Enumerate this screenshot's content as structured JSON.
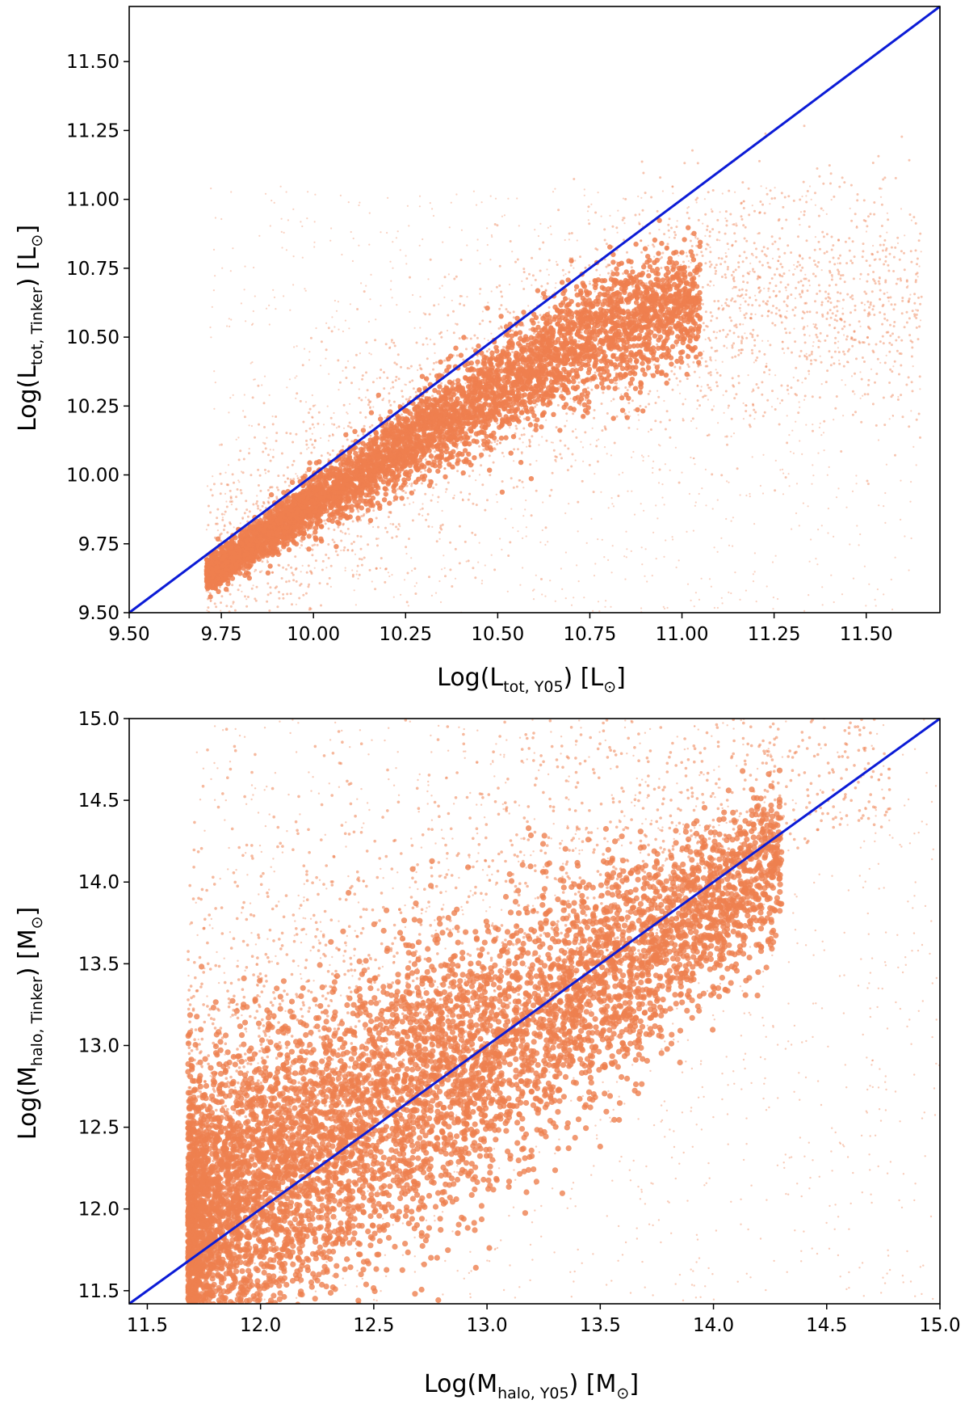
{
  "chart_data": [
    {
      "type": "scatter",
      "xlabel": {
        "base": "Log(L",
        "sub": "tot, Y05",
        "after": ") [L",
        "sun": "⊙",
        "close": "]"
      },
      "ylabel": {
        "base": "Log(L",
        "sub": "tot, Tinker",
        "after": ") [L",
        "sun": "⊙",
        "close": "]"
      },
      "xlim": [
        9.5,
        11.7
      ],
      "ylim": [
        9.5,
        11.7
      ],
      "xticks": [
        "9.50",
        "9.75",
        "10.00",
        "10.25",
        "10.50",
        "10.75",
        "11.00",
        "11.25",
        "11.50"
      ],
      "yticks": [
        "9.50",
        "9.75",
        "10.00",
        "10.25",
        "10.50",
        "10.75",
        "11.00",
        "11.25",
        "11.50"
      ],
      "grid": false,
      "point_color": "#ee7f4f",
      "line_color": "#0b1bd6",
      "reference_line": {
        "label": "",
        "x": [
          9.5,
          11.7
        ],
        "y": [
          9.5,
          11.7
        ]
      },
      "distribution": {
        "dense_ridge": {
          "x": [
            9.72,
            10.0,
            10.25,
            10.5,
            10.75,
            11.0
          ],
          "y": [
            9.64,
            9.9,
            10.11,
            10.31,
            10.5,
            10.62
          ],
          "scatter_sd": [
            0.03,
            0.05,
            0.07,
            0.09,
            0.11,
            0.1
          ]
        },
        "x_min": 9.71,
        "x_max": 11.65,
        "y_max": 11.05
      }
    },
    {
      "type": "scatter",
      "xlabel": {
        "base": "Log(M",
        "sub": "halo, Y05",
        "after": ") [M",
        "sun": "⊙",
        "close": "]"
      },
      "ylabel": {
        "base": "Log(M",
        "sub": "halo, Tinker",
        "after": ") [M",
        "sun": "⊙",
        "close": "]"
      },
      "xlim": [
        11.42,
        15.0
      ],
      "ylim": [
        11.42,
        15.0
      ],
      "xticks": [
        "11.5",
        "12.0",
        "12.5",
        "13.0",
        "13.5",
        "14.0",
        "14.5",
        "15.0"
      ],
      "yticks": [
        "11.5",
        "12.0",
        "12.5",
        "13.0",
        "13.5",
        "14.0",
        "14.5",
        "15.0"
      ],
      "grid": false,
      "point_color": "#ee7f4f",
      "line_color": "#0b1bd6",
      "reference_line": {
        "label": "",
        "x": [
          11.42,
          15.0
        ],
        "y": [
          11.42,
          15.0
        ]
      },
      "distribution": {
        "dense_band": {
          "x": [
            11.68,
            12.0,
            12.5,
            13.0,
            13.5,
            14.0,
            14.5
          ],
          "y": [
            11.9,
            12.15,
            12.55,
            12.95,
            13.4,
            13.85,
            14.3
          ],
          "scatter_sd": [
            0.45,
            0.45,
            0.45,
            0.42,
            0.35,
            0.25,
            0.2
          ]
        },
        "x_min": 11.68,
        "x_max": 15.0,
        "y_max": 15.0
      }
    }
  ]
}
